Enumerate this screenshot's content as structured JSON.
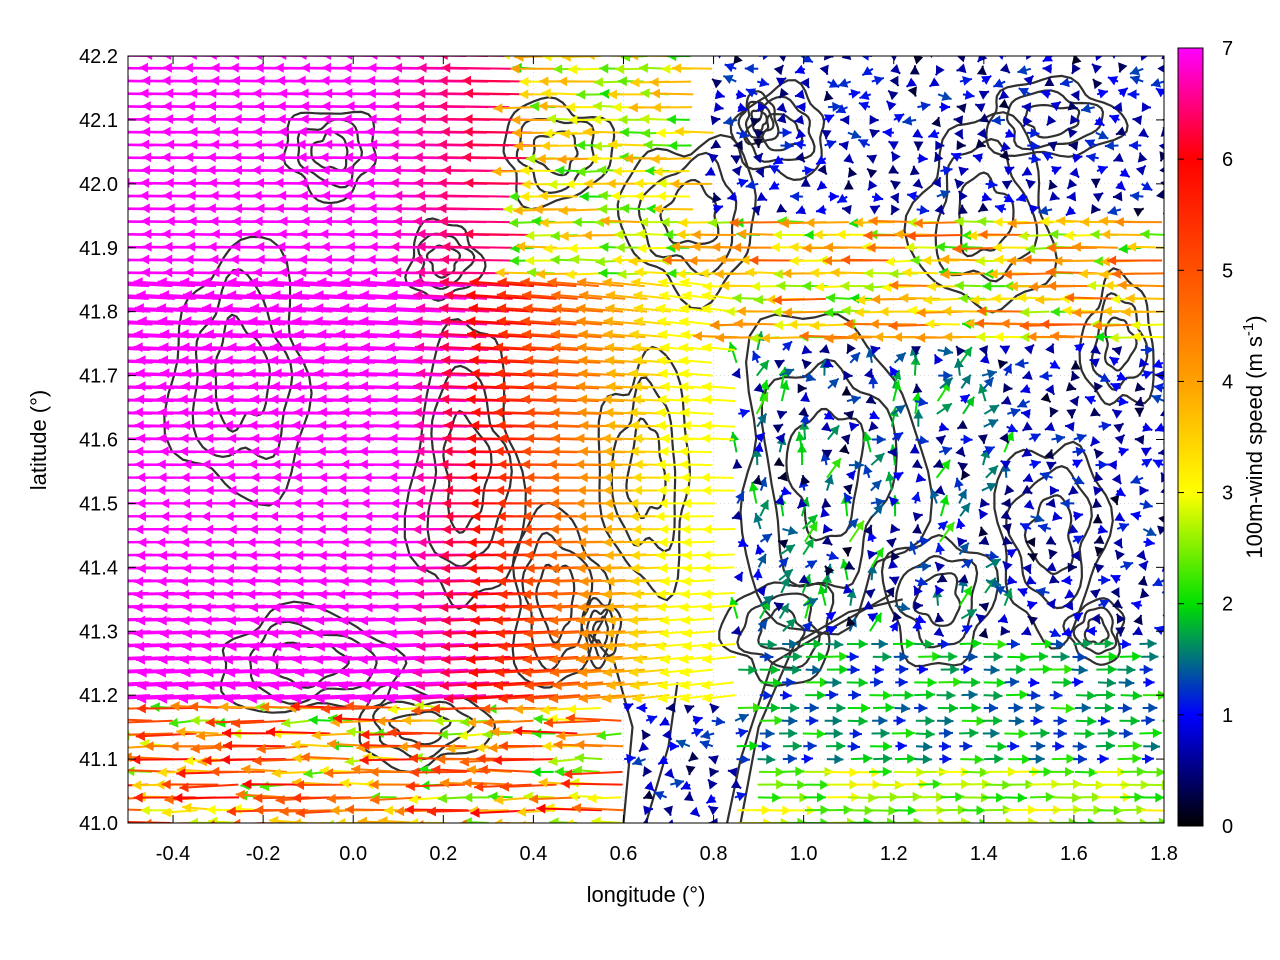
{
  "chart_data": {
    "type": "quiver",
    "title": "",
    "xlabel": "longitude (°)",
    "ylabel": "latitude (°)",
    "xlim": [
      -0.5,
      1.8
    ],
    "ylim": [
      41.0,
      42.2
    ],
    "x_ticks": [
      -0.4,
      -0.2,
      0.0,
      0.2,
      0.4,
      0.6,
      0.8,
      1.0,
      1.2,
      1.4,
      1.6,
      1.8
    ],
    "x_tick_labels": [
      "-0.4",
      "-0.2",
      "0.0",
      "0.2",
      "0.4",
      "0.6",
      "0.8",
      "1.0",
      "1.2",
      "1.4",
      "1.6",
      "1.8"
    ],
    "y_ticks": [
      41.0,
      41.1,
      41.2,
      41.3,
      41.4,
      41.5,
      41.6,
      41.7,
      41.8,
      41.9,
      42.0,
      42.1,
      42.2
    ],
    "y_tick_labels": [
      "41.0",
      "41.1",
      "41.2",
      "41.3",
      "41.4",
      "41.5",
      "41.6",
      "41.7",
      "41.8",
      "41.9",
      "42.0",
      "42.1",
      "42.2"
    ],
    "grid": true,
    "colorbar": {
      "label_main": "100m-wind speed (m s",
      "label_sup": "-1",
      "label_end": ")",
      "range": [
        0,
        7
      ],
      "ticks": [
        0,
        1,
        2,
        3,
        4,
        5,
        6,
        7
      ],
      "tick_labels": [
        "0",
        "1",
        "2",
        "3",
        "4",
        "5",
        "6",
        "7"
      ],
      "palette": [
        {
          "v": 0,
          "color": "#000000"
        },
        {
          "v": 1,
          "color": "#0000ff"
        },
        {
          "v": 2,
          "color": "#00e000"
        },
        {
          "v": 3,
          "color": "#ffff00"
        },
        {
          "v": 4,
          "color": "#ffa000"
        },
        {
          "v": 5,
          "color": "#ff5000"
        },
        {
          "v": 6,
          "color": "#ff0000"
        },
        {
          "v": 7,
          "color": "#ff00ff"
        }
      ]
    },
    "wind_field": {
      "description_regions": [
        {
          "region": "west (lon < 0.8)",
          "direction": "westward",
          "speed_ms": 7
        },
        {
          "region": "central (lon 0.6-1.0)",
          "direction": "westward",
          "speed_ms": 3
        },
        {
          "region": "southeast (lon > 1.0, lat < 41.3)",
          "direction": "eastward",
          "speed_ms": 1.5
        },
        {
          "region": "northeast (lon > 1.0, lat > 41.9)",
          "direction": "variable",
          "speed_ms": 1
        }
      ],
      "grid_lon_step": 0.05,
      "grid_lat_step": 0.02,
      "contour_color": "#303030"
    }
  }
}
